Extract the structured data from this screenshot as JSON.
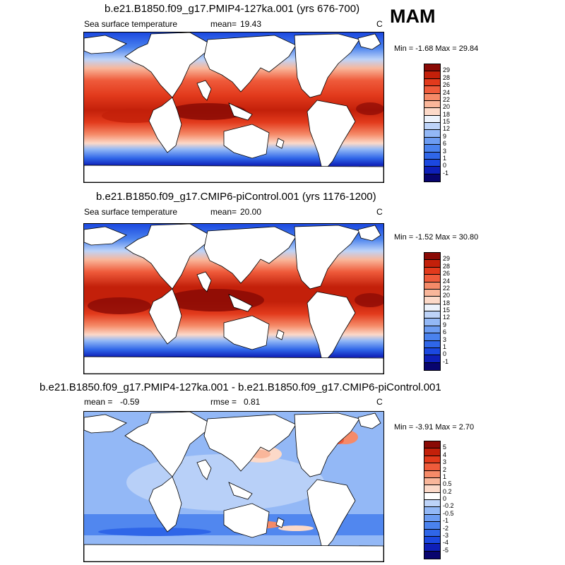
{
  "season": "MAM",
  "colors": {
    "sst_scale": [
      "#08046e",
      "#0e1fb8",
      "#1b48e0",
      "#2f66e8",
      "#4a82ee",
      "#6c9cf2",
      "#93b8f6",
      "#bdd3f8",
      "#ecf2fb",
      "#fcd9c8",
      "#f9b69a",
      "#f58a68",
      "#ef5b3b",
      "#e23a1c",
      "#c3200a",
      "#8a0a05"
    ],
    "diff_scale": [
      "#08046e",
      "#0e1fb8",
      "#1b48e0",
      "#2f66e8",
      "#4a82ee",
      "#6c9cf2",
      "#93b8f6",
      "#bdd3f8",
      "#ffffff",
      "#fcd9c8",
      "#f9b69a",
      "#f58a68",
      "#ef5b3b",
      "#e23a1c",
      "#c3200a",
      "#8a0a05"
    ],
    "land": "#ffffff",
    "coast": "#000000"
  },
  "panels": [
    {
      "title": "b.e21.B1850.f09_g17.PMIP4-127ka.001 (yrs 676-700)",
      "left_label": "Sea surface temperature",
      "mean_label": "mean=",
      "mean_value": "19.43",
      "rmse_label": "",
      "rmse_value": "",
      "units": "C",
      "minmax": "Min =  -1.68 Max =  29.84",
      "colorbar_labels": [
        "29",
        "28",
        "26",
        "24",
        "22",
        "20",
        "18",
        "15",
        "12",
        "9",
        "6",
        "3",
        "1",
        "0",
        "-1"
      ]
    },
    {
      "title": "b.e21.B1850.f09_g17.CMIP6-piControl.001 (yrs 1176-1200)",
      "left_label": "Sea surface temperature",
      "mean_label": "mean=",
      "mean_value": "20.00",
      "rmse_label": "",
      "rmse_value": "",
      "units": "C",
      "minmax": "Min =  -1.52 Max =  30.80",
      "colorbar_labels": [
        "29",
        "28",
        "26",
        "24",
        "22",
        "20",
        "18",
        "15",
        "12",
        "9",
        "6",
        "3",
        "1",
        "0",
        "-1"
      ]
    },
    {
      "title": "b.e21.B1850.f09_g17.PMIP4-127ka.001 - b.e21.B1850.f09_g17.CMIP6-piControl.001",
      "left_label": "mean =",
      "mean_label": "",
      "mean_value": "-0.59",
      "rmse_label": "rmse =",
      "rmse_value": "0.81",
      "units": "C",
      "minmax": "Min =  -3.91 Max =   2.70",
      "colorbar_labels": [
        "5",
        "4",
        "3",
        "2",
        "1",
        "0.5",
        "0.2",
        "0",
        "-0.2",
        "-0.5",
        "-1",
        "-2",
        "-3",
        "-4",
        "-5"
      ]
    }
  ]
}
